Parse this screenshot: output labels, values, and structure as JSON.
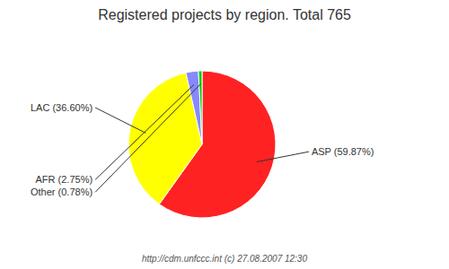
{
  "chart_data": {
    "type": "pie",
    "title": "Registered projects by region. Total 765",
    "categories": [
      "ASP (59.87%)",
      "LAC (36.60%)",
      "AFR (2.75%)",
      "Other (0.78%)"
    ],
    "values": [
      59.87,
      36.6,
      2.75,
      0.78
    ],
    "colors": [
      "#ff2222",
      "#ffff00",
      "#8888ff",
      "#00cc00"
    ],
    "annotations": [
      "http://cdm.unfccc.int (c) 27.08.2007 12:30"
    ]
  }
}
